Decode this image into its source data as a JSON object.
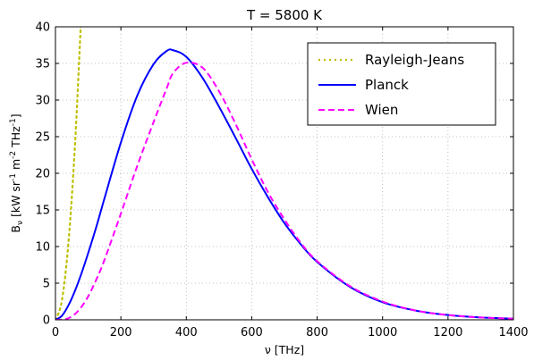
{
  "chart_data": {
    "type": "line",
    "title": "T = 5800 K",
    "xlabel": "ν [THz]",
    "ylabel": "B_ν [kW sr⁻¹ m⁻² THz⁻¹]",
    "ylabel_parts": {
      "symbol": "B",
      "subscript": "ν",
      "units_open": " [kW sr",
      "sup1": "-1",
      "mid": " m",
      "sup2": "-2",
      "mid2": " THz",
      "sup3": "-1",
      "close": "]"
    },
    "xlim": [
      0,
      1400
    ],
    "ylim": [
      0,
      40
    ],
    "xticks": [
      0,
      200,
      400,
      600,
      800,
      1000,
      1200,
      1400
    ],
    "yticks": [
      0,
      5,
      10,
      15,
      20,
      25,
      30,
      35,
      40
    ],
    "grid": true,
    "legend_position": "top-right",
    "x": [
      0,
      20,
      40,
      60,
      80,
      100,
      125,
      150,
      200,
      250,
      300,
      340,
      360,
      400,
      450,
      500,
      550,
      600,
      650,
      700,
      750,
      800,
      900,
      1000,
      1100,
      1200,
      1300,
      1400
    ],
    "series": [
      {
        "name": "Rayleigh-Jeans",
        "color": "#bfbf00",
        "style": "dotted",
        "values": [
          0,
          2.7,
          10.7,
          24.1,
          42.8,
          null,
          null,
          null,
          null,
          null,
          null,
          null,
          null,
          null,
          null,
          null,
          null,
          null,
          null,
          null,
          null,
          null,
          null,
          null,
          null,
          null,
          null,
          null
        ]
      },
      {
        "name": "Planck",
        "color": "#0000ff",
        "style": "solid",
        "values": [
          0,
          0.56,
          2.0,
          4.0,
          6.4,
          9.1,
          12.7,
          16.6,
          24.2,
          30.6,
          34.9,
          36.7,
          36.8,
          35.9,
          33.0,
          29.1,
          24.9,
          20.6,
          16.7,
          13.2,
          10.3,
          7.9,
          4.5,
          2.4,
          1.27,
          0.65,
          0.32,
          0.16
        ]
      },
      {
        "name": "Wien",
        "color": "#ff00ff",
        "style": "dashed",
        "values": [
          0,
          0.02,
          0.22,
          0.8,
          1.8,
          3.2,
          5.5,
          8.2,
          14.5,
          21.0,
          27.0,
          31.6,
          33.7,
          35.1,
          34.4,
          31.2,
          26.8,
          21.9,
          17.4,
          13.7,
          10.5,
          8.0,
          4.6,
          2.5,
          1.28,
          0.65,
          0.32,
          0.16
        ]
      }
    ]
  }
}
